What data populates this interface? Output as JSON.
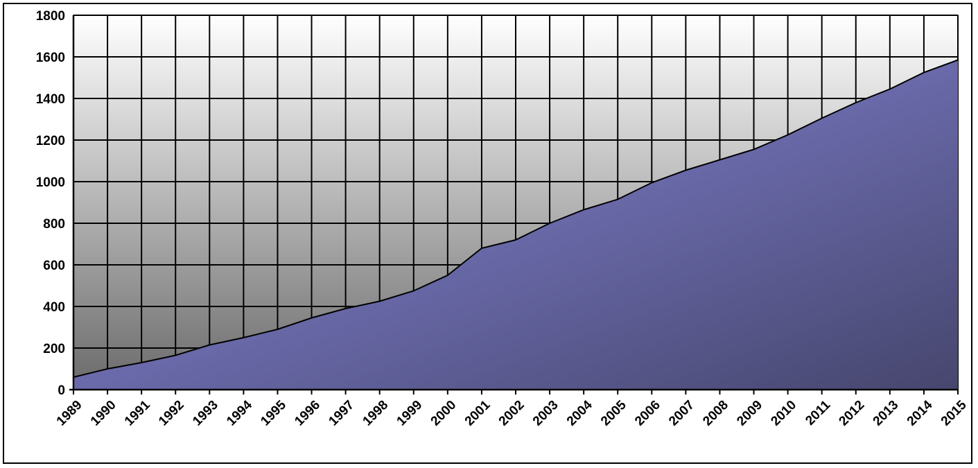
{
  "chart_data": {
    "type": "area",
    "title": "",
    "xlabel": "",
    "ylabel": "",
    "categories": [
      "1989",
      "1990",
      "1991",
      "1992",
      "1993",
      "1994",
      "1995",
      "1996",
      "1997",
      "1998",
      "1999",
      "2000",
      "2001",
      "2002",
      "2003",
      "2004",
      "2005",
      "2006",
      "2007",
      "2008",
      "2009",
      "2010",
      "2011",
      "2012",
      "2013",
      "2014",
      "2015"
    ],
    "values": [
      60,
      100,
      130,
      165,
      215,
      250,
      290,
      345,
      390,
      425,
      475,
      550,
      680,
      720,
      800,
      865,
      915,
      995,
      1055,
      1105,
      1155,
      1225,
      1305,
      1380,
      1445,
      1525,
      1585
    ],
    "ylim": [
      0,
      1800
    ],
    "yticks": [
      "0",
      "200",
      "400",
      "600",
      "800",
      "1000",
      "1200",
      "1400",
      "1600",
      "1800"
    ],
    "grid": true,
    "legend": "none",
    "colors": {
      "area_top": "#7c7bc8",
      "area_bottom": "#46466e",
      "plot_top": "#ffffff",
      "plot_bottom": "#6a6a6a",
      "line": "#000000"
    }
  }
}
